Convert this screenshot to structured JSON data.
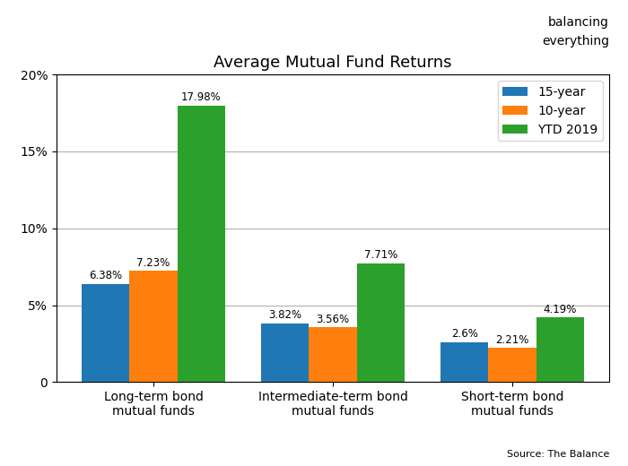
{
  "chart_data": {
    "type": "bar",
    "title": "Average Mutual Fund Returns",
    "categories": [
      "Long-term bond\nmutual funds",
      "Intermediate-term bond\nmutual funds",
      "Short-term bond\nmutual funds"
    ],
    "series": [
      {
        "name": "15-year",
        "values": [
          6.38,
          3.82,
          2.6
        ],
        "value_labels": [
          "6.38%",
          "3.82%",
          "2.6%"
        ]
      },
      {
        "name": "10-year",
        "values": [
          7.23,
          3.56,
          2.21
        ],
        "value_labels": [
          "7.23%",
          "3.56%",
          "2.21%"
        ]
      },
      {
        "name": "YTD 2019",
        "values": [
          17.98,
          7.71,
          4.19
        ],
        "value_labels": [
          "17.98%",
          "7.71%",
          "4.19%"
        ]
      }
    ],
    "ylim": [
      0,
      20
    ],
    "yticks": [
      0,
      {
        "value": 5,
        "label": "5%"
      },
      {
        "value": 10,
        "label": "10%"
      },
      {
        "value": 15,
        "label": "15%"
      },
      {
        "value": 20,
        "label": "20%"
      }
    ],
    "grid": true,
    "legend": "upper right",
    "data_labels": true,
    "annotations": [
      "balancing",
      "everything",
      "Source: The Balance"
    ]
  }
}
